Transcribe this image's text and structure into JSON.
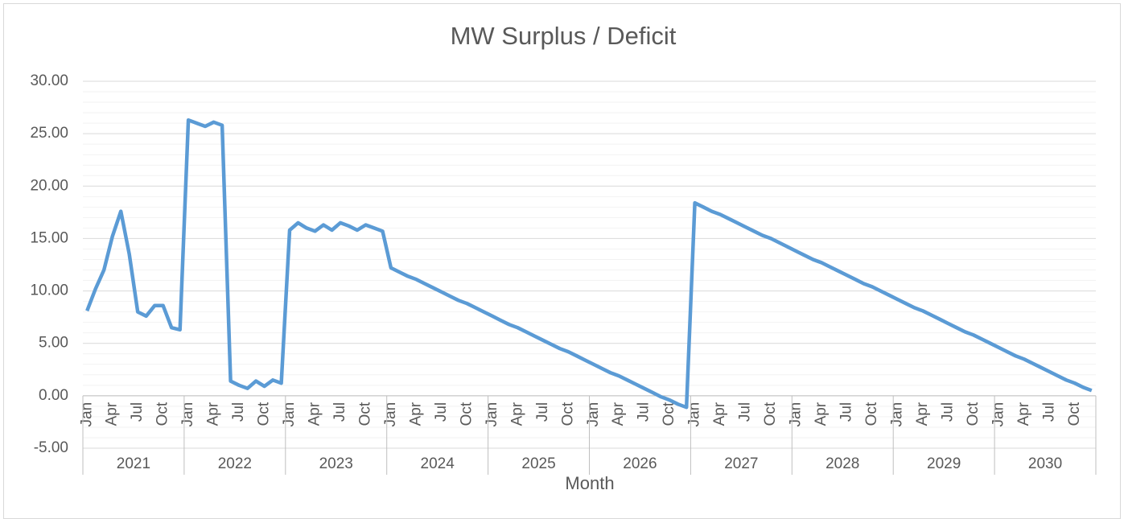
{
  "chart_data": {
    "type": "line",
    "title": "MW Surplus / Deficit",
    "x_label": "Month",
    "categories": [
      "Jan",
      null,
      null,
      "Apr",
      null,
      null,
      "Jul",
      null,
      null,
      "Oct",
      null,
      null,
      "Jan",
      null,
      null,
      "Apr",
      null,
      null,
      "Jul",
      null,
      null,
      "Oct",
      null,
      null,
      "Jan",
      null,
      null,
      "Apr",
      null,
      null,
      "Jul",
      null,
      null,
      "Oct",
      null,
      null,
      "Jan",
      null,
      null,
      "Apr",
      null,
      null,
      "Jul",
      null,
      null,
      "Oct",
      null,
      null,
      "Jan",
      null,
      null,
      "Apr",
      null,
      null,
      "Jul",
      null,
      null,
      "Oct",
      null,
      null,
      "Jan",
      null,
      null,
      "Apr",
      null,
      null,
      "Jul",
      null,
      null,
      "Oct",
      null,
      null,
      "Jan",
      null,
      null,
      "Apr",
      null,
      null,
      "Jul",
      null,
      null,
      "Oct",
      null,
      null,
      "Jan",
      null,
      null,
      "Apr",
      null,
      null,
      "Jul",
      null,
      null,
      "Oct",
      null,
      null,
      "Jan",
      null,
      null,
      "Apr",
      null,
      null,
      "Jul",
      null,
      null,
      "Oct",
      null,
      null,
      "Jan",
      null,
      null,
      "Apr",
      null,
      null,
      "Jul",
      null,
      null,
      "Oct",
      null,
      null
    ],
    "groups": [
      "2021",
      "2022",
      "2023",
      "2024",
      "2025",
      "2026",
      "2027",
      "2028",
      "2029",
      "2030"
    ],
    "series": [
      {
        "name": "MW Surplus / Deficit",
        "color": "#5b9bd5",
        "values": [
          8.1,
          10.2,
          12.0,
          15.2,
          17.6,
          13.5,
          8.0,
          7.6,
          8.6,
          8.6,
          6.5,
          6.3,
          26.3,
          26.0,
          25.7,
          26.1,
          25.8,
          1.4,
          1.0,
          0.7,
          1.4,
          0.9,
          1.5,
          1.2,
          15.8,
          16.5,
          16.0,
          15.7,
          16.3,
          15.8,
          16.5,
          16.2,
          15.8,
          16.3,
          16.0,
          15.7,
          12.2,
          11.8,
          11.4,
          11.1,
          10.7,
          10.3,
          9.9,
          9.5,
          9.1,
          8.8,
          8.4,
          8.0,
          7.6,
          7.2,
          6.8,
          6.5,
          6.1,
          5.7,
          5.3,
          4.9,
          4.5,
          4.2,
          3.8,
          3.4,
          3.0,
          2.6,
          2.2,
          1.9,
          1.5,
          1.1,
          0.7,
          0.3,
          -0.1,
          -0.4,
          -0.8,
          -1.1,
          18.4,
          18.0,
          17.6,
          17.3,
          16.9,
          16.5,
          16.1,
          15.7,
          15.3,
          15.0,
          14.6,
          14.2,
          13.8,
          13.4,
          13.0,
          12.7,
          12.3,
          11.9,
          11.5,
          11.1,
          10.7,
          10.4,
          10.0,
          9.6,
          9.2,
          8.8,
          8.4,
          8.1,
          7.7,
          7.3,
          6.9,
          6.5,
          6.1,
          5.8,
          5.4,
          5.0,
          4.6,
          4.2,
          3.8,
          3.5,
          3.1,
          2.7,
          2.3,
          1.9,
          1.5,
          1.2,
          0.8,
          0.5
        ]
      }
    ],
    "ylim": [
      -5,
      30
    ],
    "yticks": [
      {
        "value": -5,
        "label": "-5.00"
      },
      {
        "value": 0,
        "label": "0.00"
      },
      {
        "value": 5,
        "label": "5.00"
      },
      {
        "value": 10,
        "label": "10.00"
      },
      {
        "value": 15,
        "label": "15.00"
      },
      {
        "value": 20,
        "label": "20.00"
      },
      {
        "value": 25,
        "label": "25.00"
      },
      {
        "value": 30,
        "label": "30.00"
      }
    ],
    "minor_yticks": [
      -4,
      -3,
      -2,
      -1,
      1,
      2,
      3,
      4,
      6,
      7,
      8,
      9,
      11,
      12,
      13,
      14,
      16,
      17,
      18,
      19,
      21,
      22,
      23,
      24,
      26,
      27,
      28,
      29
    ],
    "grid": true,
    "legend": false
  }
}
